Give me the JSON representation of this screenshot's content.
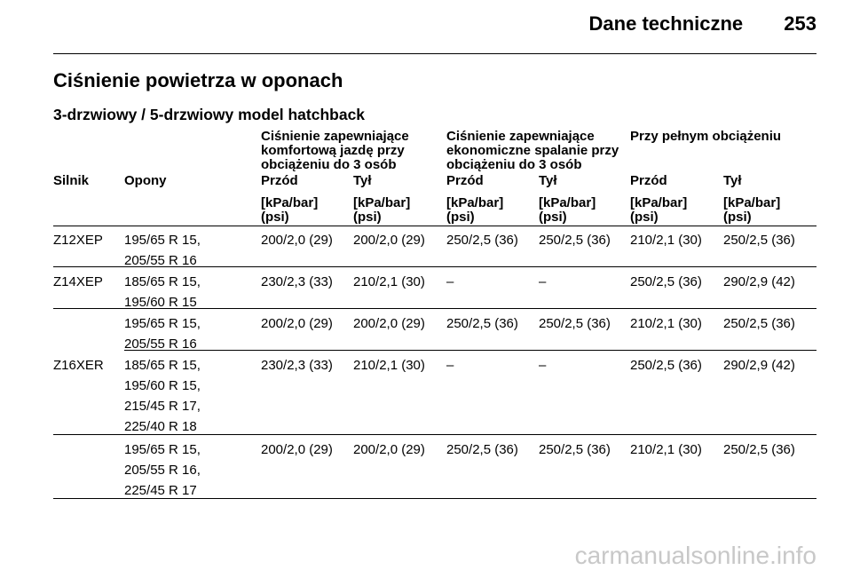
{
  "header": {
    "section": "Dane techniczne",
    "page": "253"
  },
  "title": "Ciśnienie powietrza w oponach",
  "subtitle": "3-drzwiowy / 5-drzwiowy model hatchback",
  "groups": [
    "Ciśnienie zapewniające komfortową jazdę przy obciążeniu do 3 osób",
    "Ciśnienie zapewniające ekonomiczne spalanie przy obciążeniu do 3 osób",
    "Przy pełnym obciążeniu"
  ],
  "columns": [
    "Silnik",
    "Opony",
    "Przód",
    "Tył",
    "Przód",
    "Tył",
    "Przód",
    "Tył"
  ],
  "units": "[kPa/bar] (psi)",
  "rows": [
    {
      "engine": "Z12XEP",
      "tyres": [
        "195/65 R 15,",
        "205/55 R 16"
      ],
      "values": [
        "200/2,0 (29)",
        "200/2,0 (29)",
        "250/2,5 (36)",
        "250/2,5 (36)",
        "210/2,1 (30)",
        "250/2,5 (36)"
      ]
    },
    {
      "engine": "Z14XEP",
      "tyres": [
        "185/65 R 15,",
        "195/60 R 15"
      ],
      "values": [
        "230/2,3 (33)",
        "210/2,1 (30)",
        "–",
        "–",
        "250/2,5 (36)",
        "290/2,9 (42)"
      ]
    },
    {
      "engine": "",
      "tyres": [
        "195/65 R 15,",
        "205/55 R 16"
      ],
      "values": [
        "200/2,0 (29)",
        "200/2,0 (29)",
        "250/2,5 (36)",
        "250/2,5 (36)",
        "210/2,1 (30)",
        "250/2,5 (36)"
      ]
    },
    {
      "engine": "Z16XER",
      "tyres": [
        "185/65 R 15,",
        "195/60 R 15,",
        "215/45 R 17,",
        "225/40 R 18"
      ],
      "values": [
        "230/2,3 (33)",
        "210/2,1 (30)",
        "–",
        "–",
        "250/2,5 (36)",
        "290/2,9 (42)"
      ]
    },
    {
      "engine": "",
      "tyres": [
        "195/65 R 15,",
        "205/55 R 16,",
        "225/45 R 17"
      ],
      "values": [
        "200/2,0 (29)",
        "200/2,0 (29)",
        "250/2,5 (36)",
        "250/2,5 (36)",
        "210/2,1 (30)",
        "250/2,5 (36)"
      ]
    }
  ],
  "watermark": "carmanualsonline.info"
}
